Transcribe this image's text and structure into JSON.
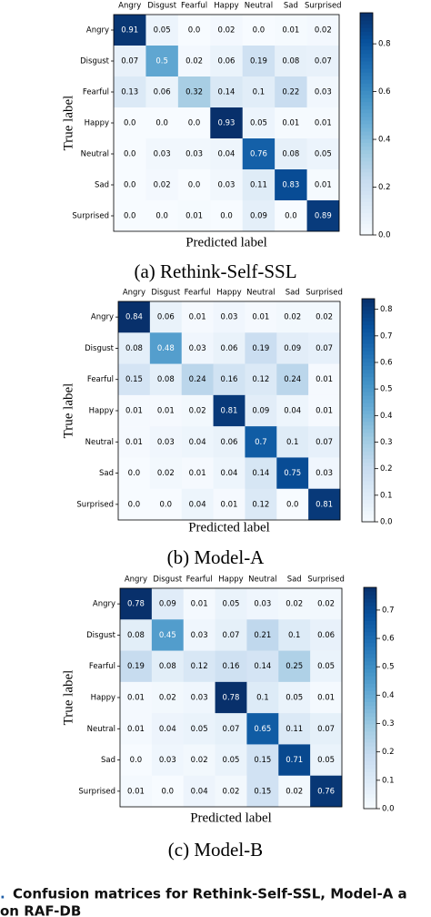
{
  "chart_data": [
    {
      "type": "heatmap",
      "title": "(a) Rethink-Self-SSL",
      "xlabel": "Predicted label",
      "ylabel": "True label",
      "x_categories": [
        "Angry",
        "Disgust",
        "Fearful",
        "Happy",
        "Neutral",
        "Sad",
        "Surprised"
      ],
      "y_categories": [
        "Angry",
        "Disgust",
        "Fearful",
        "Happy",
        "Neutral",
        "Sad",
        "Surprised"
      ],
      "values": [
        [
          0.91,
          0.05,
          0.0,
          0.02,
          0.0,
          0.01,
          0.02
        ],
        [
          0.07,
          0.5,
          0.02,
          0.06,
          0.19,
          0.08,
          0.07
        ],
        [
          0.13,
          0.06,
          0.32,
          0.14,
          0.1,
          0.22,
          0.03
        ],
        [
          0.0,
          0.0,
          0.0,
          0.93,
          0.05,
          0.01,
          0.01
        ],
        [
          0.0,
          0.03,
          0.03,
          0.04,
          0.76,
          0.08,
          0.05
        ],
        [
          0.0,
          0.02,
          0.0,
          0.03,
          0.11,
          0.83,
          0.01
        ],
        [
          0.0,
          0.0,
          0.01,
          0.0,
          0.09,
          0.0,
          0.89
        ]
      ],
      "value_labels": [
        [
          "0.91",
          "0.05",
          "0.0",
          "0.02",
          "0.0",
          "0.01",
          "0.02"
        ],
        [
          "0.07",
          "0.5",
          "0.02",
          "0.06",
          "0.19",
          "0.08",
          "0.07"
        ],
        [
          "0.13",
          "0.06",
          "0.32",
          "0.14",
          "0.1",
          "0.22",
          "0.03"
        ],
        [
          "0.0",
          "0.0",
          "0.0",
          "0.93",
          "0.05",
          "0.01",
          "0.01"
        ],
        [
          "0.0",
          "0.03",
          "0.03",
          "0.04",
          "0.76",
          "0.08",
          "0.05"
        ],
        [
          "0.0",
          "0.02",
          "0.0",
          "0.03",
          "0.11",
          "0.83",
          "0.01"
        ],
        [
          "0.0",
          "0.0",
          "0.01",
          "0.0",
          "0.09",
          "0.0",
          "0.89"
        ]
      ],
      "colormap": "Blues",
      "zlim": [
        0,
        0.93
      ],
      "zticks": [
        {
          "value": 0,
          "label": "0.0"
        },
        0.2,
        0.4,
        0.6,
        0.8
      ]
    },
    {
      "type": "heatmap",
      "title": "(b) Model-A",
      "xlabel": "Predicted label",
      "ylabel": "True label",
      "x_categories": [
        "Angry",
        "Disgust",
        "Fearful",
        "Happy",
        "Neutral",
        "Sad",
        "Surprised"
      ],
      "y_categories": [
        "Angry",
        "Disgust",
        "Fearful",
        "Happy",
        "Neutral",
        "Sad",
        "Surprised"
      ],
      "values": [
        [
          0.84,
          0.06,
          0.01,
          0.03,
          0.01,
          0.02,
          0.02
        ],
        [
          0.08,
          0.48,
          0.03,
          0.06,
          0.19,
          0.09,
          0.07
        ],
        [
          0.15,
          0.08,
          0.24,
          0.16,
          0.12,
          0.24,
          0.01
        ],
        [
          0.01,
          0.01,
          0.02,
          0.81,
          0.09,
          0.04,
          0.01
        ],
        [
          0.01,
          0.03,
          0.04,
          0.06,
          0.7,
          0.1,
          0.07
        ],
        [
          0.0,
          0.02,
          0.01,
          0.04,
          0.14,
          0.75,
          0.03
        ],
        [
          0.0,
          0.0,
          0.04,
          0.01,
          0.12,
          0.0,
          0.81
        ]
      ],
      "value_labels": [
        [
          "0.84",
          "0.06",
          "0.01",
          "0.03",
          "0.01",
          "0.02",
          "0.02"
        ],
        [
          "0.08",
          "0.48",
          "0.03",
          "0.06",
          "0.19",
          "0.09",
          "0.07"
        ],
        [
          "0.15",
          "0.08",
          "0.24",
          "0.16",
          "0.12",
          "0.24",
          "0.01"
        ],
        [
          "0.01",
          "0.01",
          "0.02",
          "0.81",
          "0.09",
          "0.04",
          "0.01"
        ],
        [
          "0.01",
          "0.03",
          "0.04",
          "0.06",
          "0.7",
          "0.1",
          "0.07"
        ],
        [
          "0.0",
          "0.02",
          "0.01",
          "0.04",
          "0.14",
          "0.75",
          "0.03"
        ],
        [
          "0.0",
          "0.0",
          "0.04",
          "0.01",
          "0.12",
          "0.0",
          "0.81"
        ]
      ],
      "colormap": "Blues",
      "zlim": [
        0,
        0.84
      ],
      "zticks": [
        {
          "value": 0,
          "label": "0.0"
        },
        0.1,
        0.2,
        0.3,
        0.4,
        0.5,
        0.6,
        0.7,
        0.8
      ]
    },
    {
      "type": "heatmap",
      "title": "(c) Model-B",
      "xlabel": "Predicted label",
      "ylabel": "True label",
      "x_categories": [
        "Angry",
        "Disgust",
        "Fearful",
        "Happy",
        "Neutral",
        "Sad",
        "Surprised"
      ],
      "y_categories": [
        "Angry",
        "Disgust",
        "Fearful",
        "Happy",
        "Neutral",
        "Sad",
        "Surprised"
      ],
      "values": [
        [
          0.78,
          0.09,
          0.01,
          0.05,
          0.03,
          0.02,
          0.02
        ],
        [
          0.08,
          0.45,
          0.03,
          0.07,
          0.21,
          0.1,
          0.06
        ],
        [
          0.19,
          0.08,
          0.12,
          0.16,
          0.14,
          0.25,
          0.05
        ],
        [
          0.01,
          0.02,
          0.03,
          0.78,
          0.1,
          0.05,
          0.01
        ],
        [
          0.01,
          0.04,
          0.05,
          0.07,
          0.65,
          0.11,
          0.07
        ],
        [
          0.0,
          0.03,
          0.02,
          0.05,
          0.15,
          0.71,
          0.05
        ],
        [
          0.01,
          0.0,
          0.04,
          0.02,
          0.15,
          0.02,
          0.76
        ]
      ],
      "value_labels": [
        [
          "0.78",
          "0.09",
          "0.01",
          "0.05",
          "0.03",
          "0.02",
          "0.02"
        ],
        [
          "0.08",
          "0.45",
          "0.03",
          "0.07",
          "0.21",
          "0.1",
          "0.06"
        ],
        [
          "0.19",
          "0.08",
          "0.12",
          "0.16",
          "0.14",
          "0.25",
          "0.05"
        ],
        [
          "0.01",
          "0.02",
          "0.03",
          "0.78",
          "0.1",
          "0.05",
          "0.01"
        ],
        [
          "0.01",
          "0.04",
          "0.05",
          "0.07",
          "0.65",
          "0.11",
          "0.07"
        ],
        [
          "0.0",
          "0.03",
          "0.02",
          "0.05",
          "0.15",
          "0.71",
          "0.05"
        ],
        [
          "0.01",
          "0.0",
          "0.04",
          "0.02",
          "0.15",
          "0.02",
          "0.76"
        ]
      ],
      "colormap": "Blues",
      "zlim": [
        0,
        0.78
      ],
      "zticks": [
        {
          "value": 0,
          "label": "0.0"
        },
        0.1,
        0.2,
        0.3,
        0.4,
        0.5,
        0.6,
        0.7
      ]
    }
  ],
  "caption": {
    "number": ".",
    "lines": [
      "Confusion matrices for Rethink-Self-SSL, Model-A a",
      "on RAF-DB"
    ]
  }
}
